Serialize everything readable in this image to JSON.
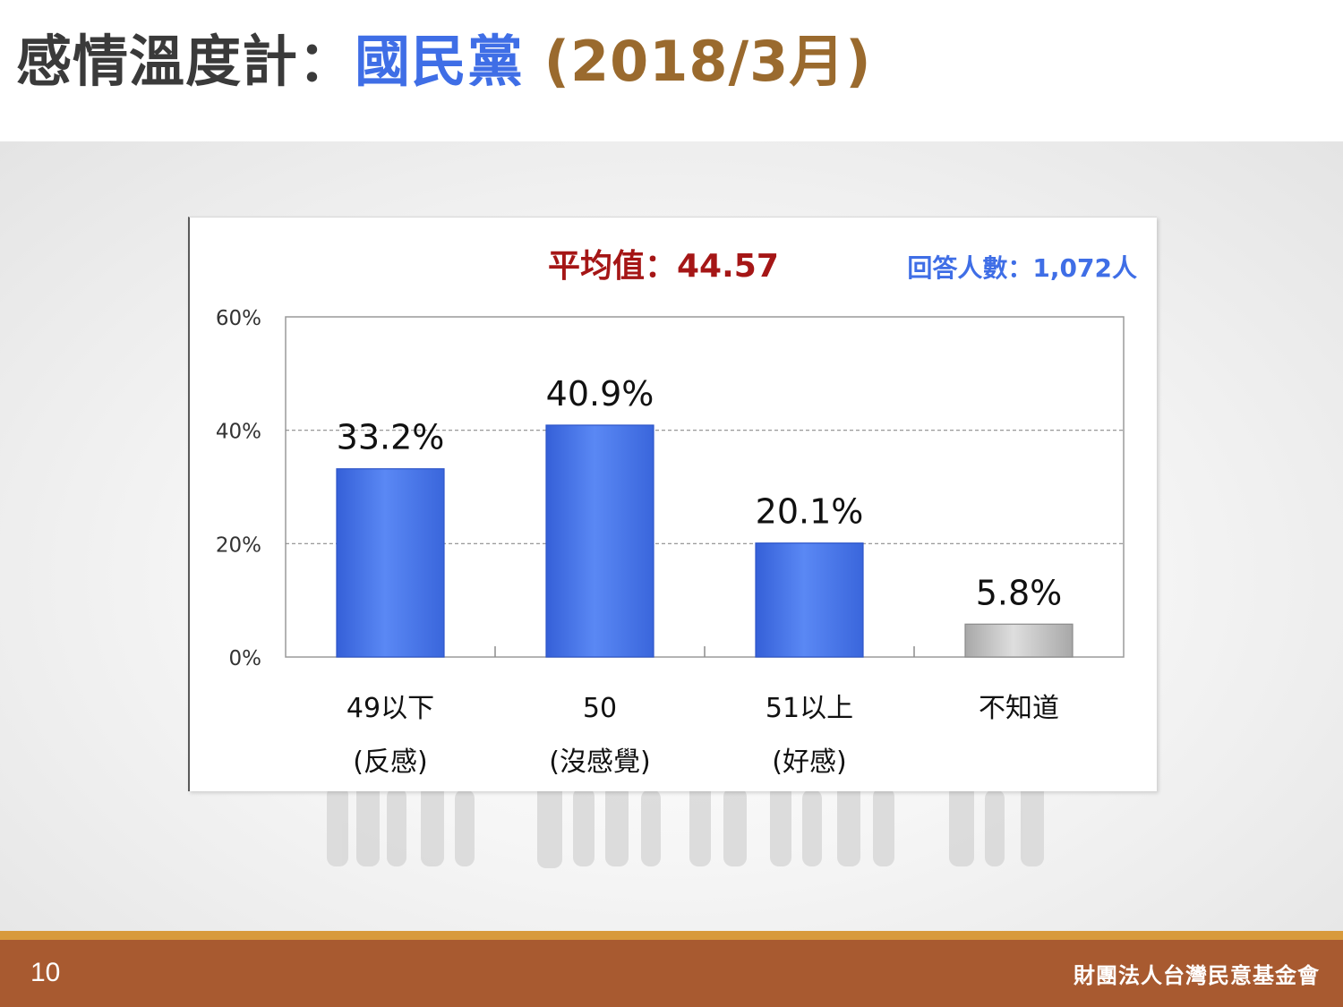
{
  "title": {
    "main": "感情溫度計：",
    "party": "國民黨",
    "date": "(2018/3月)"
  },
  "footer": {
    "page_number": "10",
    "org_name": "財團法人台灣民意基金會"
  },
  "colors": {
    "title_main": "#3a3a3a",
    "title_party": "#3f6ee6",
    "title_date": "#9a6a2e",
    "average_text": "#a51616",
    "respondents_text": "#3f6ee6",
    "bar_blue": "#4a78ee",
    "bar_gray": "#bdbdbd",
    "footer_bg": "#a85a30",
    "footer_accent": "#d89a3c"
  },
  "chart_data": {
    "type": "bar",
    "average_label": "平均值：44.57",
    "respondents_label": "回答人數：1,072人",
    "categories": [
      [
        "49以下",
        "(反感)"
      ],
      [
        "50",
        "(沒感覺)"
      ],
      [
        "51以上",
        "(好感)"
      ],
      [
        "不知道"
      ]
    ],
    "values": [
      33.2,
      40.9,
      20.1,
      5.8
    ],
    "value_labels": [
      "33.2%",
      "40.9%",
      "20.1%",
      "5.8%"
    ],
    "bar_colors": [
      "blue",
      "blue",
      "blue",
      "gray"
    ],
    "y_ticks": [
      "0%",
      "20%",
      "40%",
      "60%"
    ],
    "y_tick_values": [
      0,
      20,
      40,
      60
    ],
    "ylim": [
      0,
      60
    ],
    "grid": true,
    "xlabel": "",
    "ylabel": ""
  }
}
